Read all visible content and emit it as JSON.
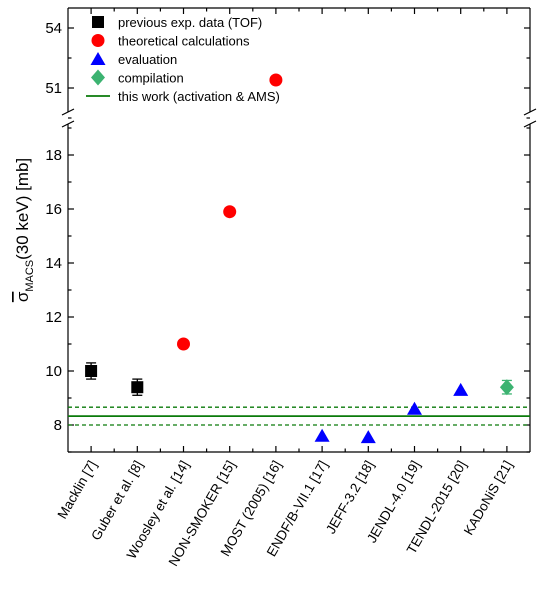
{
  "chart_data": {
    "type": "scatter",
    "ylabel": {
      "main": "σ",
      "sub": "MACS",
      "rest": "(30 keV) [mb]"
    },
    "categories": [
      "Macklin [7]",
      "Guber et al. [8]",
      "Woosley et al. [14]",
      "NON-SMOKER [15]",
      "MOST (2005) [16]",
      "ENDF/B-VII.1 [17]",
      "JEFF-3.2 [18]",
      "JENDL-4.0 [19]",
      "TENDL-2015 [20]",
      "KADoNiS [21]"
    ],
    "y_axis_broken": true,
    "lower_segment": {
      "ylim": [
        7,
        19
      ],
      "ticks": [
        8,
        10,
        12,
        14,
        16,
        18
      ]
    },
    "upper_segment": {
      "ylim": [
        49.5,
        55
      ],
      "ticks": [
        51,
        54
      ]
    },
    "series": [
      {
        "name": "previous exp. data (TOF)",
        "marker": "square",
        "color": "#000000",
        "points": [
          {
            "category": "Macklin [7]",
            "y": 10.0,
            "err": 0.3
          },
          {
            "category": "Guber et al. [8]",
            "y": 9.4,
            "err": 0.3
          }
        ]
      },
      {
        "name": "theoretical calculations",
        "marker": "circle",
        "color": "#ff0000",
        "points": [
          {
            "category": "Woosley et al. [14]",
            "y": 11.0
          },
          {
            "category": "NON-SMOKER [15]",
            "y": 15.9
          },
          {
            "category": "MOST (2005) [16]",
            "y": 51.4
          }
        ]
      },
      {
        "name": "evaluation",
        "marker": "triangle",
        "color": "#0000ff",
        "points": [
          {
            "category": "ENDF/B-VII.1 [17]",
            "y": 7.6
          },
          {
            "category": "JEFF-3.2 [18]",
            "y": 7.55
          },
          {
            "category": "JENDL-4.0 [19]",
            "y": 8.6
          },
          {
            "category": "TENDL-2015 [20]",
            "y": 9.3
          }
        ]
      },
      {
        "name": "compilation",
        "marker": "diamond",
        "color": "#3cb371",
        "points": [
          {
            "category": "KADoNiS [21]",
            "y": 9.4,
            "err": 0.25
          }
        ]
      }
    ],
    "reference_line": {
      "name": "this work (activation & AMS)",
      "color": "#0a7a0a",
      "value": 8.33,
      "band": [
        8.0,
        8.66
      ]
    },
    "legend_position": "top-left"
  }
}
